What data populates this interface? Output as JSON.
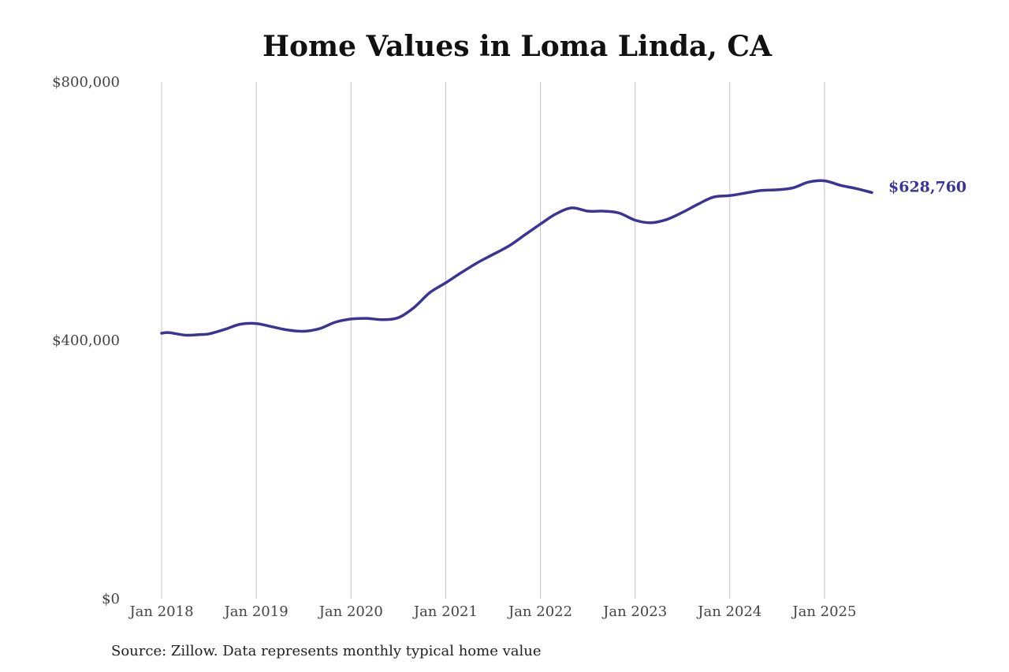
{
  "chart_data": {
    "type": "line",
    "title": "Home Values in Loma Linda, CA",
    "xlabel": "",
    "ylabel": "",
    "ylim": [
      0,
      800000
    ],
    "y_ticks": [
      0,
      400000,
      800000
    ],
    "y_tick_labels": [
      "$0",
      "$400,000",
      "$800,000"
    ],
    "x_ticks": [
      "2018-01",
      "2019-01",
      "2020-01",
      "2021-01",
      "2022-01",
      "2023-01",
      "2024-01",
      "2025-01"
    ],
    "x_tick_labels": [
      "Jan 2018",
      "Jan 2019",
      "Jan 2020",
      "Jan 2021",
      "Jan 2022",
      "Jan 2023",
      "Jan 2024",
      "Jan 2025"
    ],
    "xlim": [
      "2018-01",
      "2025-07"
    ],
    "grid": "vertical",
    "series_color": "#3b3496",
    "series": [
      {
        "x": [
          "2018-01",
          "2018-02",
          "2018-04",
          "2018-06",
          "2018-07",
          "2018-09",
          "2018-11",
          "2019-01",
          "2019-03",
          "2019-05",
          "2019-07",
          "2019-09",
          "2019-11",
          "2020-01",
          "2020-03",
          "2020-05",
          "2020-07",
          "2020-09",
          "2020-11",
          "2021-01",
          "2021-03",
          "2021-05",
          "2021-07",
          "2021-09",
          "2021-11",
          "2022-01",
          "2022-03",
          "2022-05",
          "2022-07",
          "2022-09",
          "2022-11",
          "2023-01",
          "2023-03",
          "2023-05",
          "2023-07",
          "2023-09",
          "2023-11",
          "2024-01",
          "2024-03",
          "2024-05",
          "2024-07",
          "2024-09",
          "2024-11",
          "2025-01",
          "2025-03",
          "2025-05",
          "2025-07"
        ],
        "y": [
          411000,
          412000,
          408000,
          409000,
          410000,
          417000,
          425000,
          426000,
          421000,
          416000,
          414000,
          418000,
          428000,
          433000,
          434000,
          432000,
          435000,
          451000,
          474000,
          489000,
          505000,
          520000,
          533000,
          546000,
          563000,
          580000,
          596000,
          605000,
          600000,
          600000,
          597000,
          586000,
          582000,
          587000,
          598000,
          611000,
          622000,
          624000,
          628000,
          632000,
          633000,
          636000,
          645000,
          647000,
          640000,
          635000,
          628760
        ]
      }
    ],
    "end_value_label": "$628,760",
    "source_note": "Source: Zillow. Data represents monthly typical home value"
  }
}
